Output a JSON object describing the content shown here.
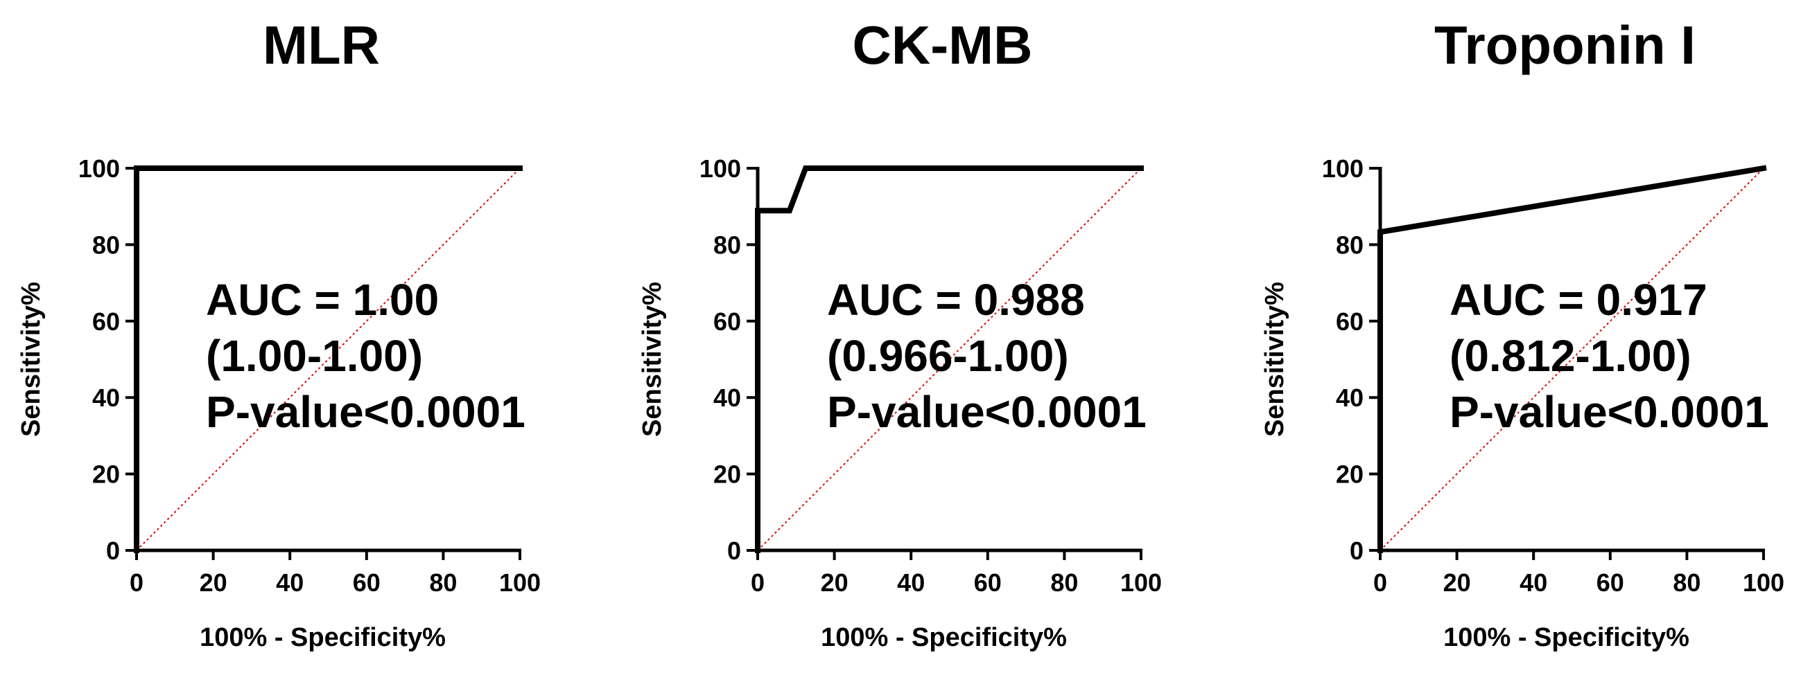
{
  "chart_data": [
    {
      "type": "line",
      "title": "MLR",
      "xlabel": "100% - Specificity%",
      "ylabel": "Sensitivity%",
      "xlim": [
        0,
        100
      ],
      "ylim": [
        0,
        100
      ],
      "xticks": [
        "0",
        "20",
        "40",
        "60",
        "80",
        "100"
      ],
      "yticks": [
        "0",
        "20",
        "40",
        "60",
        "80",
        "100"
      ],
      "grid": false,
      "series": [
        {
          "x": [
            0,
            0,
            100
          ],
          "y": [
            0,
            100,
            100
          ]
        }
      ],
      "reference_line": {
        "x": [
          0,
          100
        ],
        "y": [
          0,
          100
        ],
        "color": "#e00000",
        "style": "dotted"
      },
      "annotation": [
        "AUC = 1.00",
        "(1.00-1.00)",
        "P-value<0.0001"
      ]
    },
    {
      "type": "line",
      "title": "CK-MB",
      "xlabel": "100% - Specificity%",
      "ylabel": "Sensitivity%",
      "xlim": [
        0,
        100
      ],
      "ylim": [
        0,
        100
      ],
      "xticks": [
        "0",
        "20",
        "40",
        "60",
        "80",
        "100"
      ],
      "yticks": [
        "0",
        "20",
        "40",
        "60",
        "80",
        "100"
      ],
      "grid": false,
      "series": [
        {
          "x": [
            0,
            0,
            8.3,
            12.5,
            100
          ],
          "y": [
            0,
            88.9,
            88.9,
            100,
            100
          ]
        }
      ],
      "reference_line": {
        "x": [
          0,
          100
        ],
        "y": [
          0,
          100
        ],
        "color": "#e00000",
        "style": "dotted"
      },
      "annotation": [
        "AUC = 0.988",
        "(0.966-1.00)",
        "P-value<0.0001"
      ]
    },
    {
      "type": "line",
      "title": "Troponin I",
      "xlabel": "100% - Specificity%",
      "ylabel": "Sensitivity%",
      "xlim": [
        0,
        100
      ],
      "ylim": [
        0,
        100
      ],
      "xticks": [
        "0",
        "20",
        "40",
        "60",
        "80",
        "100"
      ],
      "yticks": [
        "0",
        "20",
        "40",
        "60",
        "80",
        "100"
      ],
      "grid": false,
      "series": [
        {
          "x": [
            0,
            0,
            100
          ],
          "y": [
            0,
            83.3,
            100
          ]
        }
      ],
      "reference_line": {
        "x": [
          0,
          100
        ],
        "y": [
          0,
          100
        ],
        "color": "#e00000",
        "style": "dotted"
      },
      "annotation": [
        "AUC = 0.917",
        "(0.812-1.00)",
        "P-value<0.0001"
      ]
    }
  ],
  "colors": {
    "curve": "#000000",
    "axes": "#000000",
    "reference": "#e00000"
  }
}
